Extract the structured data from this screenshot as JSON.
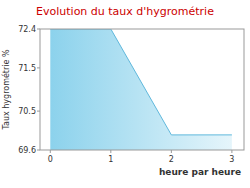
{
  "chart_data": {
    "type": "area",
    "title": "Evolution du taux d'hygrométrie",
    "x_label": "heure par heure",
    "y_label": "Taux hygrométrie %",
    "x": [
      0,
      1,
      2,
      3
    ],
    "values": [
      72.4,
      72.4,
      69.95,
      69.95
    ],
    "color": "#7fcdea",
    "xlim": [
      -0.17,
      3.2
    ],
    "xticks": [
      0,
      1,
      2,
      3
    ],
    "ylim": [
      69.6,
      72.4
    ],
    "yticks": [
      69.6,
      70.5,
      71.5,
      72.4
    ],
    "grid": false
  }
}
